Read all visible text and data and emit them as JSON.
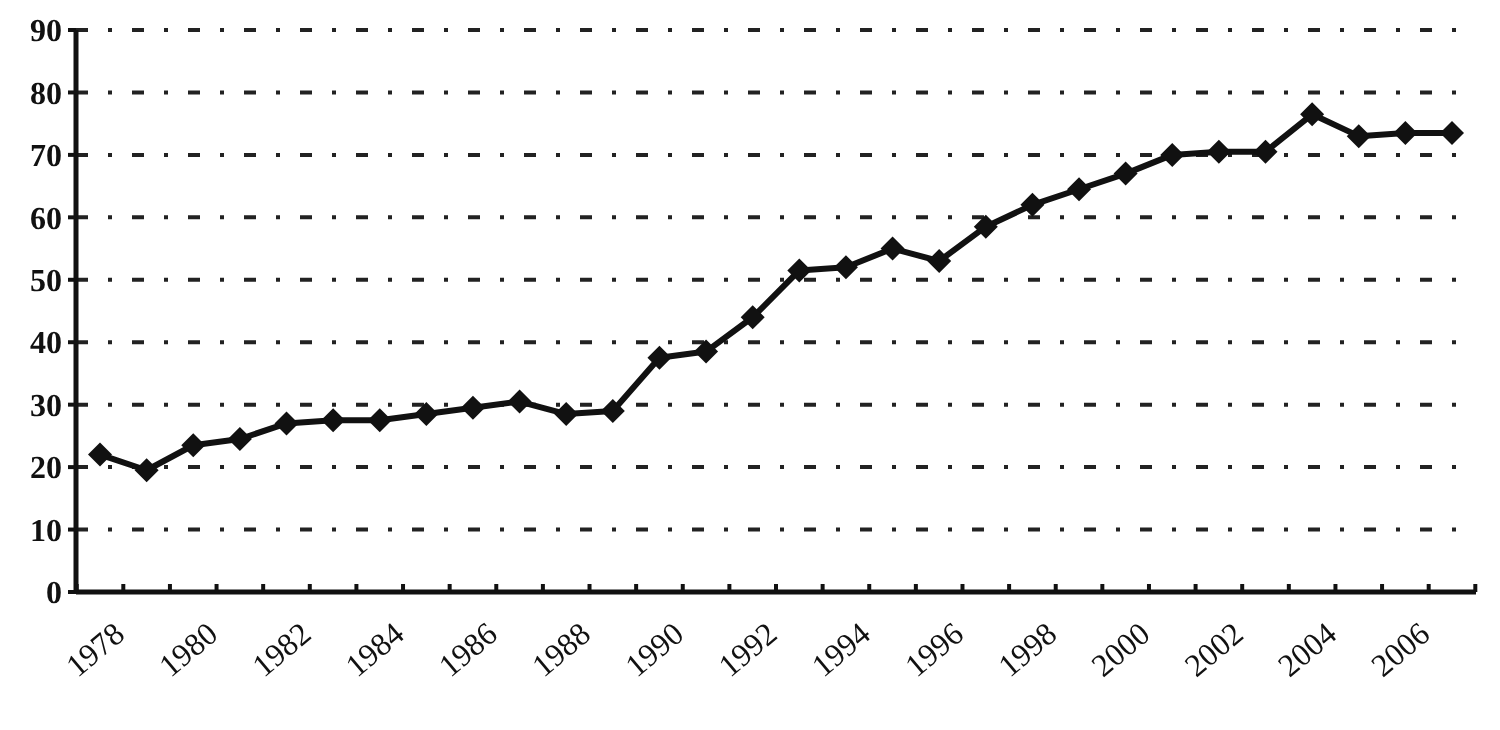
{
  "chart_data": {
    "type": "line",
    "categories": [
      "1978",
      null,
      "1980",
      null,
      "1982",
      null,
      "1984",
      null,
      "1986",
      null,
      "1988",
      null,
      "1990",
      null,
      "1992",
      null,
      "1994",
      null,
      "1996",
      null,
      "1998",
      null,
      "2000",
      null,
      "2002",
      null,
      "2004",
      null,
      "2006",
      null
    ],
    "series": [
      {
        "color": "#111111",
        "values": [
          22,
          19.5,
          23.5,
          24.5,
          27,
          27.5,
          27.5,
          28.5,
          29.5,
          30.5,
          28.5,
          29,
          37.5,
          38.5,
          44,
          51.5,
          52,
          55,
          53,
          58.5,
          62,
          64.5,
          67,
          70,
          70.5,
          70.5,
          76.5,
          73,
          73.5,
          73.5
        ]
      }
    ],
    "ylim": [
      0,
      90
    ],
    "yticks": [
      0,
      10,
      20,
      30,
      40,
      50,
      60,
      70,
      80,
      90
    ],
    "grid": "y",
    "marker": "diamond",
    "line_style": "solid"
  }
}
